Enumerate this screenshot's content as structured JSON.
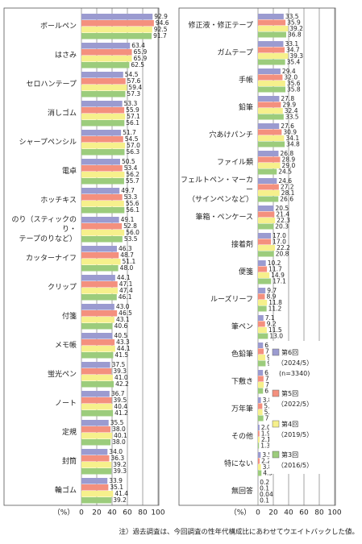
{
  "chart_data": [
    {
      "type": "bar",
      "orientation": "horizontal",
      "categories": [
        "ボールペン",
        "はさみ",
        "セロハンテープ",
        "消しゴム",
        "シャープペンシル",
        "電卓",
        "ホッチキス",
        "のり（スティックのり・\nテープのりなど）",
        "カッターナイフ",
        "クリップ",
        "付箋",
        "メモ帳",
        "蛍光ペン",
        "ノート",
        "定規",
        "封筒",
        "輪ゴム"
      ],
      "series": [
        {
          "color": "#9b9bd0",
          "values": [
            92.9,
            63.4,
            54.5,
            53.3,
            51.7,
            50.5,
            49.7,
            49.1,
            46.3,
            44.1,
            43.0,
            40.5,
            37.5,
            36.7,
            35.5,
            34.0,
            33.9
          ],
          "value_labels": [
            "92.9",
            "63.4",
            "54.5",
            "53.3",
            "51.7",
            "50.5",
            "49.7",
            "49.1",
            "46.3",
            "44.1",
            "43.0",
            "40.5",
            "37.5",
            "36.7",
            "35.5",
            "34.0",
            "33.9"
          ]
        },
        {
          "color": "#f4907e",
          "values": [
            94.6,
            65.9,
            57.6,
            55.9,
            54.5,
            53.4,
            53.3,
            52.8,
            48.7,
            47.1,
            46.5,
            43.3,
            39.3,
            39.5,
            38.0,
            36.3,
            35.1
          ],
          "value_labels": [
            "94.6",
            "65.9",
            "57.6",
            "55.9",
            "54.5",
            "53.4",
            "53.3",
            "52.8",
            "48.7",
            "47.1",
            "46.5",
            "43.3",
            "39.3",
            "39.5",
            "38.0",
            "36.3",
            "35.1"
          ]
        },
        {
          "color": "#f6f08c",
          "values": [
            92.5,
            65.9,
            59.4,
            57.1,
            57.0,
            56.2,
            55.6,
            56.0,
            51.1,
            47.4,
            43.1,
            44.1,
            41.0,
            40.4,
            40.1,
            39.2,
            41.4
          ],
          "value_labels": [
            "92.5",
            "65.9",
            "59.4",
            "57.1",
            "57.0",
            "56.2",
            "55.6",
            "56.0",
            "51.1",
            "47.4",
            "43.1",
            "44.1",
            "41.0",
            "40.4",
            "40.1",
            "39.2",
            "41.4"
          ]
        },
        {
          "color": "#9ccc7c",
          "values": [
            91.7,
            62.5,
            57.3,
            56.1,
            56.3,
            55.7,
            56.1,
            53.5,
            48.0,
            46.1,
            40.6,
            41.5,
            42.2,
            41.2,
            38.0,
            39.3,
            39.2
          ],
          "value_labels": [
            "91.7",
            "62.5",
            "57.3",
            "56.1",
            "56.3",
            "55.7",
            "56.1",
            "53.5",
            "48.0",
            "46.1",
            "40.6",
            "41.5",
            "42.2",
            "41.2",
            "38.0",
            "39.3",
            "39.2"
          ]
        }
      ],
      "x_label": "（%）",
      "xlim": [
        0,
        100
      ],
      "xticks": [
        0,
        20,
        40,
        60,
        80,
        100
      ],
      "grid": true
    },
    {
      "type": "bar",
      "orientation": "horizontal",
      "categories": [
        "修正液・修正テープ",
        "ガムテープ",
        "手帳",
        "鉛筆",
        "穴あけパンチ",
        "ファイル類",
        "フェルトペン・マーカー\n（サインペンなど）",
        "筆箱・ペンケース",
        "接着剤",
        "便箋",
        "ルーズリーフ",
        "筆ペン",
        "色鉛筆",
        "下敷き",
        "万年筆",
        "その他",
        "特にない",
        "無回答"
      ],
      "series": [
        {
          "name": "第6回",
          "period": "（2024/5）",
          "sample": "(n=3340)",
          "color": "#9b9bd0",
          "values": [
            33.5,
            33.1,
            29.4,
            27.8,
            27.6,
            26.8,
            24.6,
            20.5,
            17.0,
            10.2,
            9.7,
            7.1,
            6.6,
            6.5,
            3.8,
            2.0,
            3.5,
            0.2
          ],
          "value_labels": [
            "33.5",
            "33.1",
            "29.4",
            "27.8",
            "27.6",
            "26.8",
            "24.6",
            "20.5",
            "17.0",
            "10.2",
            "9.7",
            "7.1",
            "6.6",
            "6.5",
            "3.8",
            "2.0",
            "3.5",
            "0.2"
          ]
        },
        {
          "name": "第5回",
          "period": "（2022/5）",
          "color": "#f4907e",
          "values": [
            35.9,
            34.7,
            32.0,
            29.9,
            30.9,
            28.9,
            27.2,
            21.4,
            17.0,
            11.7,
            8.9,
            9.2,
            7.4,
            7.2,
            5.6,
            1.9,
            2.2,
            0.1
          ],
          "value_labels": [
            "35.9",
            "34.7",
            "32.0",
            "29.9",
            "30.9",
            "28.9",
            "27.2",
            "21.4",
            "17.0",
            "11.7",
            "8.9",
            "9.2",
            "7.4",
            "7.2",
            "5.6",
            "1.9",
            "2.2",
            "0.1"
          ]
        },
        {
          "name": "第4回",
          "period": "（2019/5）",
          "color": "#f6f08c",
          "values": [
            39.2,
            39.3,
            35.6,
            32.4,
            34.1,
            29.0,
            28.1,
            22.3,
            22.2,
            14.9,
            11.8,
            11.5,
            9.5,
            7.5,
            5.9,
            2.1,
            3.8,
            0.04
          ],
          "value_labels": [
            "39.2",
            "39.3",
            "35.6",
            "32.4",
            "34.1",
            "29.0",
            "28.1",
            "22.3",
            "22.2",
            "14.9",
            "11.8",
            "11.5",
            "9.5",
            "7.5",
            "5.9",
            "2.1",
            "3.8",
            "0.04"
          ]
        },
        {
          "name": "第3回",
          "period": "（2016/5）",
          "color": "#9ccc7c",
          "values": [
            36.8,
            35.4,
            35.8,
            33.5,
            34.8,
            24.5,
            26.6,
            20.3,
            20.8,
            17.1,
            11.2,
            13.0,
            9.9,
            6.6,
            7.0,
            1.3,
            4.5,
            0.1
          ],
          "value_labels": [
            "36.8",
            "35.4",
            "35.8",
            "33.5",
            "34.8",
            "24.5",
            "26.6",
            "20.3",
            "20.8",
            "17.1",
            "11.2",
            "13.0",
            "9.9",
            "6.6",
            "7.0",
            "1.3",
            "4.5",
            "0.1"
          ]
        }
      ],
      "x_label": "（%）",
      "xlim": [
        0,
        100
      ],
      "xticks": [
        0,
        20,
        40,
        60,
        80,
        100
      ],
      "grid": true,
      "legend": "lower right"
    }
  ],
  "note": "注）過去調査は、今回調査の性年代構成比にあわせてウエイトバックした値。"
}
